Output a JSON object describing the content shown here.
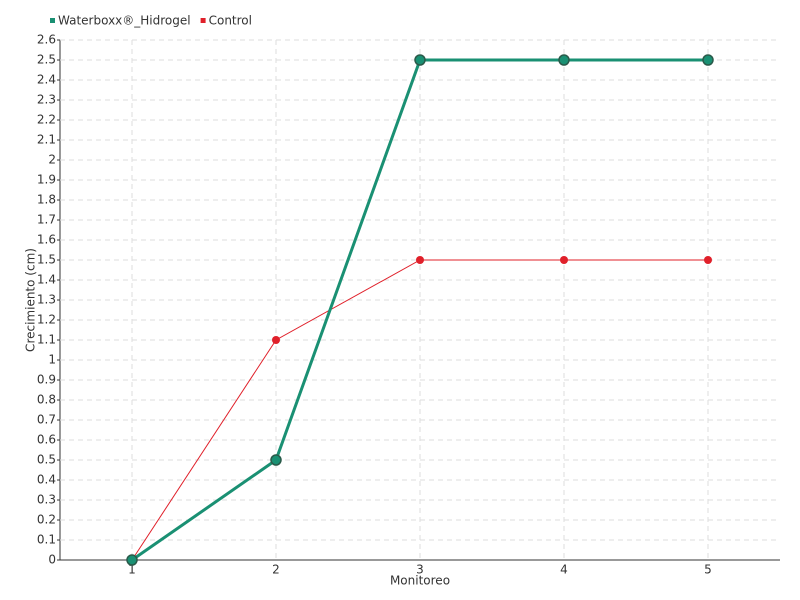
{
  "chart_data": {
    "type": "line",
    "x_label": "Monitoreo",
    "y_label": "Crecimiento (cm)",
    "categories": [
      "1",
      "2",
      "3",
      "4",
      "5"
    ],
    "series": [
      {
        "name": "Waterboxx®_Hidrogel",
        "color": "#1a9073",
        "values": [
          0,
          0.5,
          2.5,
          2.5,
          2.5
        ]
      },
      {
        "name": "Control",
        "color": "#e0202a",
        "values": [
          0,
          1.1,
          1.5,
          1.5,
          1.5
        ]
      }
    ],
    "ylim": [
      0,
      2.6
    ],
    "yticks": [
      0,
      0.1,
      0.2,
      0.3,
      0.4,
      0.5,
      0.6,
      0.7,
      0.8,
      0.9,
      1,
      1.1,
      1.2,
      1.3,
      1.4,
      1.5,
      1.6,
      1.7,
      1.8,
      1.9,
      2,
      2.1,
      2.2,
      2.3,
      2.4,
      2.5,
      2.6
    ],
    "grid": true
  }
}
